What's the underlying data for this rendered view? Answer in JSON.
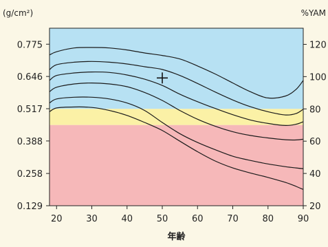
{
  "chart_data": {
    "type": "line",
    "title": "",
    "xlabel": "年齢",
    "ylabel_left": "(g/cm²)",
    "ylabel_right": "%YAM",
    "x_ticks": [
      20,
      30,
      40,
      50,
      60,
      70,
      80,
      90
    ],
    "xlim": [
      18,
      90
    ],
    "y_left_ticks": [
      "0.129",
      "0.258",
      "0.388",
      "0.517",
      "0.646",
      "0.775"
    ],
    "y_left_lim": [
      0.129,
      0.839
    ],
    "y_right_ticks": [
      20,
      40,
      60,
      80,
      100,
      120
    ],
    "y_right_lim": [
      20,
      130
    ],
    "bands": [
      {
        "name": "blue",
        "from_yam": 80,
        "to_yam": 130,
        "color": "#b7e1f3"
      },
      {
        "name": "yellow",
        "from_yam": 70,
        "to_yam": 80,
        "color": "#fbf1a6"
      },
      {
        "name": "pink",
        "from_yam": 20,
        "to_yam": 70,
        "color": "#f6b8b9"
      }
    ],
    "grid": false,
    "series": [
      {
        "x": [
          18,
          20,
          25,
          30,
          35,
          40,
          45,
          50,
          55,
          60,
          65,
          70,
          75,
          80,
          85,
          88,
          90
        ],
        "y": [
          0.732,
          0.745,
          0.76,
          0.762,
          0.76,
          0.752,
          0.74,
          0.73,
          0.716,
          0.688,
          0.656,
          0.62,
          0.585,
          0.56,
          0.568,
          0.595,
          0.63
        ]
      },
      {
        "x": [
          18,
          20,
          25,
          30,
          35,
          40,
          45,
          50,
          55,
          60,
          65,
          70,
          75,
          80,
          85,
          88,
          90
        ],
        "y": [
          0.673,
          0.693,
          0.703,
          0.706,
          0.703,
          0.696,
          0.685,
          0.674,
          0.65,
          0.618,
          0.584,
          0.552,
          0.525,
          0.505,
          0.492,
          0.498,
          0.515
        ]
      },
      {
        "x": [
          18,
          20,
          25,
          30,
          35,
          40,
          45,
          50,
          55,
          60,
          65,
          70,
          75,
          80,
          85,
          88,
          90
        ],
        "y": [
          0.63,
          0.65,
          0.66,
          0.664,
          0.662,
          0.652,
          0.635,
          0.61,
          0.575,
          0.545,
          0.518,
          0.493,
          0.472,
          0.458,
          0.45,
          0.455,
          0.465
        ]
      },
      {
        "x": [
          18,
          20,
          25,
          30,
          35,
          40,
          45,
          50,
          55,
          60,
          65,
          70,
          75,
          80,
          85,
          88,
          90
        ],
        "y": [
          0.585,
          0.603,
          0.616,
          0.62,
          0.616,
          0.605,
          0.582,
          0.55,
          0.51,
          0.475,
          0.447,
          0.425,
          0.41,
          0.4,
          0.393,
          0.392,
          0.395
        ]
      },
      {
        "x": [
          18,
          20,
          25,
          30,
          35,
          40,
          45,
          50,
          55,
          60,
          65,
          70,
          75,
          80,
          85,
          88,
          90
        ],
        "y": [
          0.54,
          0.556,
          0.563,
          0.563,
          0.556,
          0.54,
          0.51,
          0.462,
          0.417,
          0.382,
          0.353,
          0.327,
          0.31,
          0.296,
          0.285,
          0.28,
          0.277
        ]
      },
      {
        "x": [
          18,
          20,
          25,
          30,
          35,
          40,
          45,
          50,
          55,
          60,
          65,
          70,
          75,
          80,
          85,
          88,
          90
        ],
        "y": [
          0.505,
          0.52,
          0.524,
          0.522,
          0.51,
          0.49,
          0.462,
          0.43,
          0.387,
          0.345,
          0.308,
          0.28,
          0.26,
          0.242,
          0.222,
          0.206,
          0.194
        ]
      }
    ],
    "marker": {
      "x": 50,
      "y": 0.64,
      "symbol": "+"
    }
  }
}
